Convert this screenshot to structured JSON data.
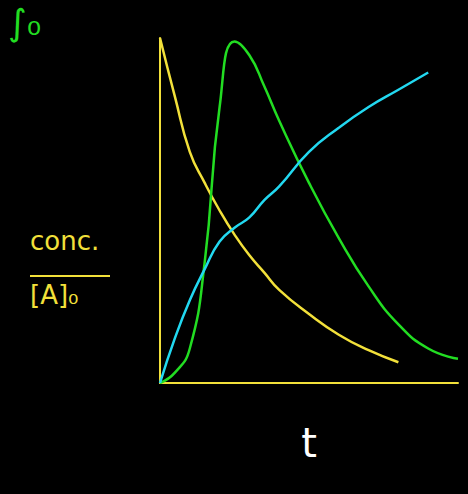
{
  "chart_data": {
    "type": "line",
    "xlabel": "t",
    "ylabel": {
      "numerator": "conc.",
      "denominator": "[A]₀"
    },
    "annotations": [
      {
        "text": "∫₀",
        "color": "#22dd22"
      }
    ],
    "x": [
      0,
      0.5,
      1,
      1.5,
      2,
      2.5,
      3,
      3.5,
      4,
      5,
      6,
      7,
      8,
      9,
      10
    ],
    "series": [
      {
        "color": "#f2e03a",
        "values": [
          1.0,
          0.83,
          0.67,
          0.58,
          0.5,
          0.43,
          0.37,
          0.32,
          0.27,
          0.2,
          0.14,
          0.095,
          0.06,
          null,
          null
        ]
      },
      {
        "color": "#22dd22",
        "values": [
          0,
          0.03,
          0.1,
          0.35,
          0.8,
          0.99,
          0.95,
          0.86,
          0.76,
          0.58,
          0.42,
          0.28,
          0.17,
          0.1,
          0.07
        ]
      },
      {
        "color": "#22d8f0",
        "values": [
          0,
          0.13,
          0.24,
          0.33,
          0.41,
          0.45,
          0.48,
          0.53,
          0.57,
          0.67,
          0.74,
          0.8,
          0.85,
          0.9,
          null
        ]
      }
    ],
    "xlim": [
      0,
      10
    ],
    "ylim": [
      0,
      1
    ],
    "xticks": [],
    "yticks": [],
    "tick_labels": false,
    "grid": false
  }
}
